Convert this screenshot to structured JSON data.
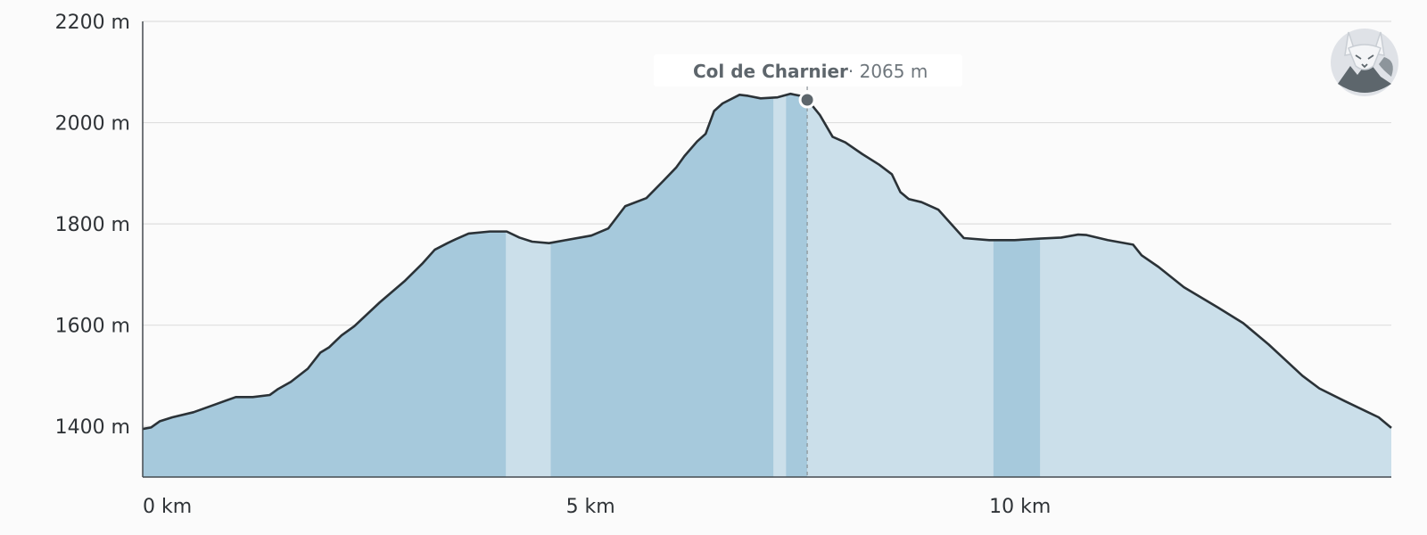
{
  "chart_data": {
    "type": "area",
    "xlabel": "",
    "ylabel": "",
    "xlim": [
      0,
      14.75
    ],
    "ylim": [
      1300,
      2200
    ],
    "grid": true,
    "y_ticks": [
      1400,
      1600,
      1800,
      2000,
      2200
    ],
    "y_tick_labels": [
      "1400 m",
      "1600 m",
      "1800 m",
      "2000 m",
      "2200 m"
    ],
    "x_ticks": [
      0,
      5,
      10
    ],
    "x_tick_labels": [
      "0 km",
      "5 km",
      "10 km"
    ],
    "series": [
      {
        "x": [
          0,
          0.1,
          0.2,
          0.35,
          0.6,
          0.85,
          1.1,
          1.3,
          1.5,
          1.6,
          1.75,
          1.95,
          2.1,
          2.2,
          2.35,
          2.5,
          2.8,
          3.1,
          3.3,
          3.45,
          3.6,
          3.7,
          3.85,
          4.1,
          4.3,
          4.45,
          4.6,
          4.8,
          5.0,
          5.3,
          5.5,
          5.6,
          5.7,
          5.95,
          6.15,
          6.3,
          6.4,
          6.55,
          6.65,
          6.75,
          6.85,
          7.05,
          7.15,
          7.3,
          7.5,
          7.65,
          7.8,
          7.85,
          8.0,
          8.15,
          8.3,
          8.5,
          8.7,
          8.85,
          8.95,
          9.05,
          9.2,
          9.4,
          9.55,
          9.7,
          10.0,
          10.3,
          10.6,
          10.85,
          11.05,
          11.15,
          11.4,
          11.7,
          11.8,
          12.0,
          12.3,
          12.7,
          13.0,
          13.3,
          13.5,
          13.7,
          13.9,
          14.2,
          14.45,
          14.6,
          14.75
        ],
        "y": [
          1395,
          1398,
          1410,
          1418,
          1428,
          1443,
          1458,
          1458,
          1462,
          1474,
          1488,
          1514,
          1546,
          1556,
          1580,
          1598,
          1645,
          1688,
          1721,
          1749,
          1762,
          1770,
          1781,
          1785,
          1785,
          1773,
          1765,
          1762,
          1768,
          1777,
          1791,
          1813,
          1835,
          1851,
          1885,
          1911,
          1934,
          1963,
          1978,
          2023,
          2038,
          2055,
          2053,
          2048,
          2050,
          2057,
          2052,
          2046,
          2015,
          1972,
          1961,
          1938,
          1917,
          1898,
          1863,
          1849,
          1843,
          1828,
          1800,
          1772,
          1768,
          1768,
          1771,
          1773,
          1779,
          1778,
          1768,
          1759,
          1738,
          1715,
          1675,
          1635,
          1604,
          1562,
          1531,
          1500,
          1475,
          1450,
          1430,
          1418,
          1397
        ]
      }
    ],
    "highlight_bands": [
      {
        "from": 4.29,
        "to": 4.82
      },
      {
        "from": 7.45,
        "to": 7.6
      },
      {
        "from": 10.05,
        "to": 10.6
      }
    ],
    "marker": {
      "x": 7.85,
      "y": 2045
    },
    "colors": {
      "area_light": "#cbdfea",
      "area_dark": "#a6c9dc",
      "line": "#2b3237",
      "grid": "#dedede",
      "marker": "#5d666c"
    }
  },
  "tooltip": {
    "name": "Col de Charnier",
    "value": "· 2065 m"
  },
  "logo": {
    "icon": "fox-mountain-logo"
  }
}
